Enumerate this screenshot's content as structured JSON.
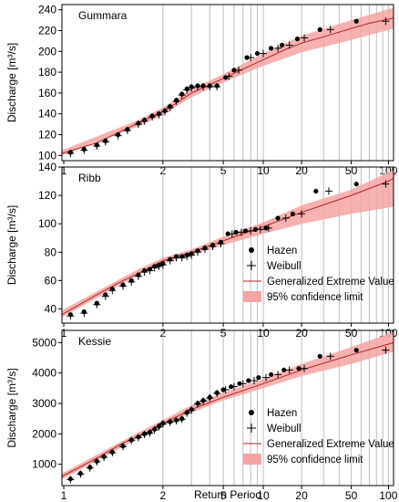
{
  "colors": {
    "gev_line": "#b22222",
    "ci_fill": "#f4a3a3",
    "grid": "#bdbdbd",
    "marker": "#000000"
  },
  "xlabel": "Return Period",
  "chart_data": [
    {
      "type": "scatter",
      "site": "Gummara",
      "ylabel": "Discharge  [m³/s]",
      "xscale": "gumbel-probability",
      "xticks": [
        1,
        2,
        5,
        10,
        20,
        50,
        100
      ],
      "xlim": [
        1.01,
        110
      ],
      "ylim": [
        95,
        245
      ],
      "yticks": [
        100,
        120,
        140,
        160,
        180,
        200,
        220,
        240
      ],
      "legend": {
        "position": "none",
        "entries": []
      },
      "gev": {
        "T": [
          1.01,
          1.1,
          1.3,
          1.6,
          2,
          2.5,
          3,
          4,
          5,
          7,
          10,
          15,
          20,
          30,
          50,
          70,
          100,
          110
        ],
        "Q": [
          102,
          112,
          124,
          134,
          142,
          152,
          160,
          168,
          174,
          183,
          192,
          202,
          208,
          214,
          222,
          227,
          231,
          232
        ]
      },
      "ci": {
        "T": [
          1.01,
          1.5,
          2,
          3,
          5,
          10,
          20,
          50,
          110
        ],
        "lower": [
          100,
          128,
          139,
          156,
          170,
          186,
          199,
          211,
          222
        ],
        "upper": [
          105,
          134,
          146,
          164,
          178,
          198,
          215,
          230,
          242
        ]
      },
      "hazen": {
        "T": [
          1.02,
          1.05,
          1.1,
          1.15,
          1.25,
          1.35,
          1.5,
          1.6,
          1.75,
          1.9,
          2.05,
          2.2,
          2.4,
          2.6,
          2.8,
          3.0,
          3.3,
          3.6,
          4.0,
          4.5,
          5.2,
          6.0,
          7.5,
          9.0,
          11.5,
          14.0,
          18.5,
          28.0,
          55.0
        ],
        "Q": [
          103,
          106,
          110,
          114,
          120,
          125,
          131,
          134,
          138,
          140,
          143,
          147,
          153,
          159,
          164,
          166,
          167,
          167,
          167,
          167,
          175,
          182,
          194,
          198,
          203,
          206,
          212,
          221,
          229
        ]
      },
      "weibull": {
        "T": [
          1.02,
          1.05,
          1.1,
          1.15,
          1.25,
          1.35,
          1.5,
          1.6,
          1.75,
          1.9,
          2.05,
          2.2,
          2.4,
          2.6,
          2.8,
          3.0,
          3.3,
          3.6,
          4.0,
          4.5,
          5.5,
          6.5,
          8.0,
          10.0,
          13.0,
          16.0,
          21.0,
          34.0,
          95.0
        ],
        "Q": [
          102,
          105,
          109,
          113,
          119,
          124,
          130,
          133,
          137,
          139,
          142,
          146,
          152,
          158,
          163,
          165,
          166,
          166,
          166,
          166,
          176,
          182,
          194,
          198,
          203,
          206,
          213,
          221,
          229
        ]
      }
    },
    {
      "type": "scatter",
      "site": "Ribb",
      "ylabel": "Discharge  [m³/s]",
      "xscale": "gumbel-probability",
      "xticks": [
        1,
        2,
        5,
        10,
        20,
        50,
        100
      ],
      "xlim": [
        1.01,
        110
      ],
      "ylim": [
        30,
        140
      ],
      "yticks": [
        40,
        60,
        80,
        100,
        120,
        140
      ],
      "legend": {
        "position": "bottom-right",
        "entries": [
          "Hazen",
          "Weibull",
          "Generalized Extreme Value",
          "95% confidence limit"
        ]
      },
      "gev": {
        "T": [
          1.01,
          1.1,
          1.3,
          1.6,
          2,
          3,
          5,
          10,
          20,
          50,
          100,
          110
        ],
        "Q": [
          36,
          50,
          60,
          67,
          74,
          80,
          88,
          98,
          108,
          120,
          130,
          132
        ]
      },
      "ci": {
        "T": [
          1.01,
          1.5,
          2,
          3,
          5,
          10,
          20,
          50,
          110
        ],
        "lower": [
          34,
          64,
          72,
          78,
          85,
          93,
          100,
          107,
          112
        ],
        "upper": [
          39,
          68,
          76,
          82,
          91,
          101,
          113,
          124,
          138
        ]
      },
      "hazen": {
        "T": [
          1.02,
          1.05,
          1.1,
          1.15,
          1.2,
          1.3,
          1.4,
          1.5,
          1.6,
          1.7,
          1.8,
          1.9,
          2.0,
          2.2,
          2.4,
          2.6,
          2.8,
          3.0,
          3.3,
          3.7,
          4.2,
          4.8,
          5.4,
          6.2,
          7.3,
          8.7,
          10.5,
          13.0,
          17.0,
          26.0,
          55.0
        ],
        "Q": [
          36,
          38,
          44,
          50,
          54,
          57,
          60,
          64,
          67,
          68,
          70,
          71,
          72,
          75,
          77,
          77,
          78,
          79,
          81,
          83,
          85,
          87,
          93,
          94,
          95,
          96,
          97,
          104,
          107,
          123,
          128
        ]
      },
      "weibull": {
        "T": [
          1.02,
          1.05,
          1.1,
          1.15,
          1.2,
          1.3,
          1.4,
          1.5,
          1.6,
          1.7,
          1.8,
          1.9,
          2.0,
          2.2,
          2.4,
          2.6,
          2.8,
          3.0,
          3.3,
          3.7,
          4.2,
          4.8,
          5.8,
          6.8,
          8.0,
          9.5,
          11.0,
          15.0,
          20.0,
          33.0,
          95.0
        ],
        "Q": [
          35,
          37,
          43,
          49,
          53,
          56,
          59,
          63,
          66,
          67,
          69,
          70,
          71,
          74,
          76,
          76,
          77,
          78,
          80,
          82,
          84,
          86,
          93,
          94,
          95,
          96,
          97,
          104,
          107,
          123,
          128
        ]
      }
    },
    {
      "type": "scatter",
      "site": "Kessie",
      "ylabel": "Discharge  [m³/s]",
      "xscale": "gumbel-probability",
      "xticks": [
        1,
        2,
        5,
        10,
        20,
        50,
        100
      ],
      "xlim": [
        1.01,
        110
      ],
      "ylim": [
        300,
        5400
      ],
      "yticks": [
        1000,
        2000,
        3000,
        4000,
        5000
      ],
      "legend": {
        "position": "bottom-right",
        "entries": [
          "Hazen",
          "Weibull",
          "Generalized Extreme Value",
          "95% confidence limit"
        ]
      },
      "gev": {
        "T": [
          1.01,
          1.1,
          1.3,
          1.6,
          2,
          3,
          5,
          10,
          20,
          50,
          100,
          110
        ],
        "Q": [
          600,
          1200,
          1700,
          2000,
          2350,
          2800,
          3200,
          3650,
          4100,
          4600,
          4950,
          5000
        ]
      },
      "ci": {
        "T": [
          1.01,
          1.5,
          2,
          3,
          5,
          10,
          20,
          50,
          110
        ],
        "lower": [
          500,
          1850,
          2250,
          2700,
          3100,
          3500,
          3900,
          4300,
          4700
        ],
        "upper": [
          700,
          2050,
          2450,
          2950,
          3350,
          3800,
          4300,
          4850,
          5350
        ]
      },
      "hazen": {
        "T": [
          1.02,
          1.04,
          1.07,
          1.1,
          1.14,
          1.2,
          1.3,
          1.4,
          1.5,
          1.6,
          1.7,
          1.8,
          1.9,
          2.0,
          2.2,
          2.4,
          2.6,
          2.8,
          3.0,
          3.3,
          3.6,
          4.0,
          4.5,
          5.0,
          5.7,
          6.6,
          7.7,
          9.2,
          11.5,
          14.5,
          19.0,
          28.0,
          55.0
        ],
        "Q": [
          520,
          700,
          900,
          1100,
          1250,
          1400,
          1600,
          1800,
          1900,
          2000,
          2050,
          2150,
          2250,
          2350,
          2400,
          2450,
          2500,
          2700,
          2800,
          3000,
          3100,
          3200,
          3350,
          3450,
          3550,
          3650,
          3750,
          3850,
          3950,
          4100,
          4150,
          4550,
          4750
        ]
      },
      "weibull": {
        "T": [
          1.02,
          1.04,
          1.07,
          1.1,
          1.14,
          1.2,
          1.3,
          1.4,
          1.5,
          1.6,
          1.7,
          1.8,
          1.9,
          2.0,
          2.2,
          2.4,
          2.6,
          2.8,
          3.0,
          3.3,
          3.6,
          4.0,
          4.5,
          5.2,
          6.0,
          7.0,
          8.5,
          10.5,
          13.0,
          16.0,
          21.0,
          34.0,
          95.0
        ],
        "Q": [
          500,
          680,
          880,
          1080,
          1230,
          1380,
          1580,
          1780,
          1880,
          1980,
          2030,
          2130,
          2230,
          2330,
          2380,
          2430,
          2480,
          2680,
          2780,
          2980,
          3080,
          3180,
          3330,
          3450,
          3550,
          3650,
          3750,
          3850,
          3950,
          4100,
          4150,
          4550,
          4750
        ]
      }
    }
  ]
}
